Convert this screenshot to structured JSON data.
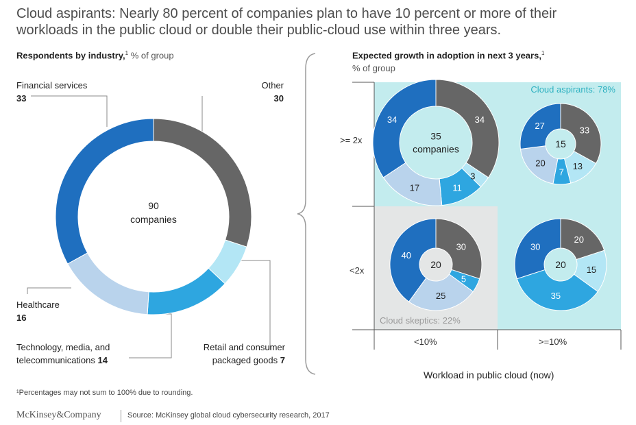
{
  "title": "Cloud aspirants: Nearly 80 percent of companies plan to have 10 percent or more of their workloads in the public cloud or double their public-cloud use within three years.",
  "left": {
    "heading_bold": "Respondents by industry,",
    "heading_sup": "1",
    "heading_rest": " % of group"
  },
  "right": {
    "heading_bold": "Expected growth in adoption in next 3 years,",
    "heading_sup": "1",
    "heading_rest": "% of group",
    "x_axis_title": "Workload in public cloud (now)",
    "x_labels": [
      "<10%",
      ">=10%"
    ],
    "y_labels": [
      ">= 2x",
      "<2x"
    ],
    "aspirants_label": "Cloud aspirants: 78%",
    "skeptics_label": "Cloud skeptics: 22%"
  },
  "footnote": "¹Percentages may not sum to 100% due to rounding.",
  "brand": "McKinsey&Company",
  "source": "Source: McKinsey global cloud cybersecurity research, 2017",
  "colors": {
    "other": "#666666",
    "retail": "#b3e6f5",
    "technology": "#2ea6e0",
    "healthcare": "#b9d3ec",
    "financial": "#1f6fbf",
    "aspirant_bg": "#c3ecee",
    "skeptic_bg": "#e4e6e6",
    "aspirant_text": "#2db1c0",
    "skeptic_text": "#9a9a9a"
  },
  "chart_data": [
    {
      "type": "pie",
      "variant": "donut",
      "center_label": [
        "90",
        "companies"
      ],
      "categories": [
        "Other",
        "Retail and consumer packaged goods",
        "Technology, media, and telecommunications",
        "Healthcare",
        "Financial services"
      ],
      "label_lines": [
        [
          "Other"
        ],
        [
          "Retail and consumer",
          "packaged goods"
        ],
        [
          "Technology, media, and",
          "telecommunications"
        ],
        [
          "Healthcare"
        ],
        [
          "Financial services"
        ]
      ],
      "values": [
        30,
        7,
        14,
        16,
        33
      ]
    },
    {
      "type": "pie",
      "variant": "donut-grid",
      "categories": [
        "Other",
        "Retail and consumer packaged goods",
        "Technology, media, and telecommunications",
        "Healthcare",
        "Financial services"
      ],
      "cells": [
        {
          "growth": ">= 2x",
          "workload": "<10%",
          "center_label": [
            "35",
            "companies"
          ],
          "values": [
            34,
            3,
            11,
            17,
            34
          ]
        },
        {
          "growth": ">= 2x",
          "workload": ">=10%",
          "center_label": [
            "15"
          ],
          "values": [
            33,
            13,
            7,
            20,
            27
          ]
        },
        {
          "growth": "<2x",
          "workload": "<10%",
          "center_label": [
            "20"
          ],
          "values": [
            30,
            0,
            5,
            25,
            40
          ]
        },
        {
          "growth": "<2x",
          "workload": ">=10%",
          "center_label": [
            "20"
          ],
          "values": [
            20,
            15,
            35,
            0,
            30
          ]
        }
      ]
    }
  ]
}
